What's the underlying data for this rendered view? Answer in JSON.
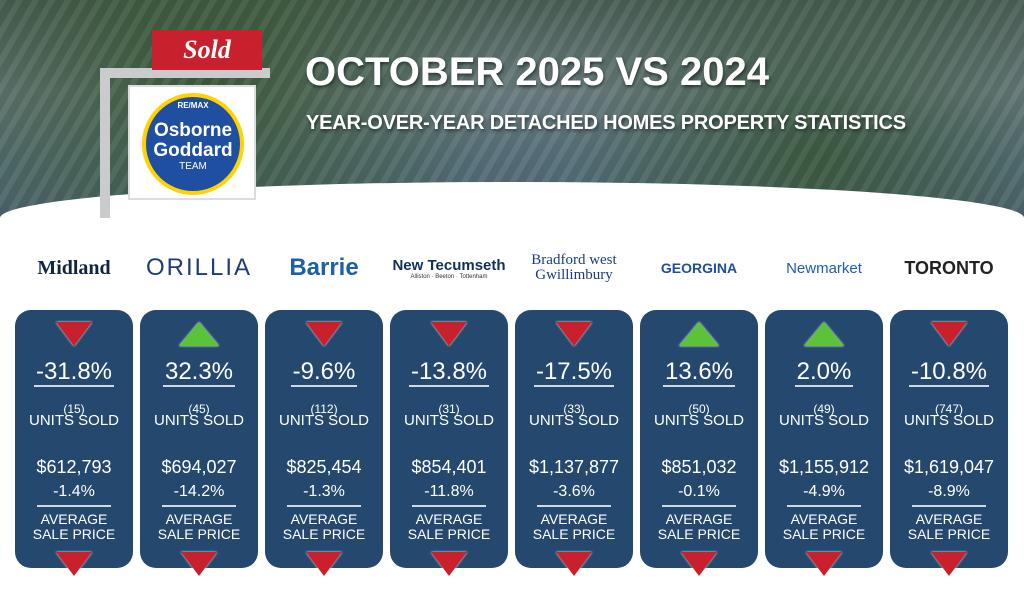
{
  "header": {
    "title": "OCTOBER 2025 VS 2024",
    "subtitle": "YEAR-OVER-YEAR DETACHED HOMES PROPERTY STATISTICS",
    "sign_text": "Sold",
    "brand": {
      "top": "RE/MAX",
      "name1": "Osborne",
      "name2": "Goddard",
      "team": "TEAM"
    }
  },
  "colors": {
    "card": "#25496e",
    "down": "#c8202c",
    "up": "#5cc23a",
    "sold": "#c8202c"
  },
  "labels": {
    "units": "UNITS SOLD",
    "avg1": "AVERAGE",
    "avg2": "SALE PRICE"
  },
  "markets": [
    {
      "logo": "Midland",
      "units_change": "-31.8%",
      "units_dir": "down",
      "units": "(15)",
      "price": "$612,793",
      "price_change": "-1.4%",
      "price_dir": "down"
    },
    {
      "logo": "ORILLIA",
      "units_change": "32.3%",
      "units_dir": "up",
      "units": "(45)",
      "price": "$694,027",
      "price_change": "-14.2%",
      "price_dir": "down"
    },
    {
      "logo": "Barrie",
      "units_change": "-9.6%",
      "units_dir": "down",
      "units": "(112)",
      "price": "$825,454",
      "price_change": "-1.3%",
      "price_dir": "down"
    },
    {
      "logo": "New Tecumseth",
      "logo_sub": "Alliston · Beeton · Tottenham",
      "units_change": "-13.8%",
      "units_dir": "down",
      "units": "(31)",
      "price": "$854,401",
      "price_change": "-11.8%",
      "price_dir": "down"
    },
    {
      "logo": "Bradford west Gwillimbury",
      "units_change": "-17.5%",
      "units_dir": "down",
      "units": "(33)",
      "price": "$1,137,877",
      "price_change": "-3.6%",
      "price_dir": "down"
    },
    {
      "logo": "GEORGINA",
      "units_change": "13.6%",
      "units_dir": "up",
      "units": "(50)",
      "price": "$851,032",
      "price_change": "-0.1%",
      "price_dir": "down"
    },
    {
      "logo": "Newmarket",
      "units_change": "2.0%",
      "units_dir": "up",
      "units": "(49)",
      "price": "$1,155,912",
      "price_change": "-4.9%",
      "price_dir": "down"
    },
    {
      "logo": "TORONTO",
      "units_change": "-10.8%",
      "units_dir": "down",
      "units": "(747)",
      "price": "$1,619,047",
      "price_change": "-8.9%",
      "price_dir": "down"
    }
  ]
}
